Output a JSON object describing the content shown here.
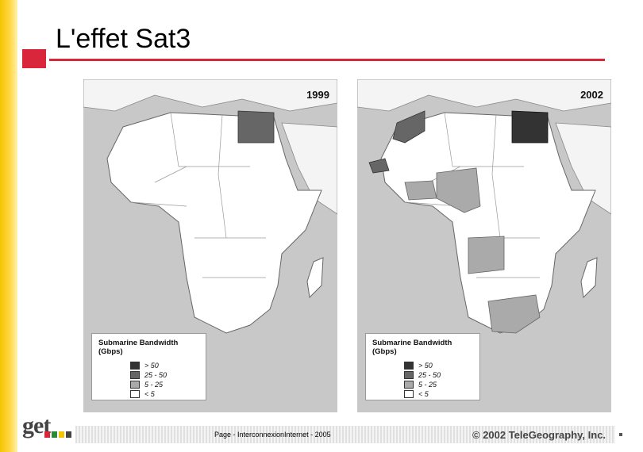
{
  "slide": {
    "title": "L'effet Sat3",
    "footer": "Page  - InterconnexionInternet  - 2005",
    "copyright": "© 2002 TeleGeography, Inc.",
    "logo_text": "get"
  },
  "maps": [
    {
      "year": "1999",
      "legend": {
        "title": "Submarine Bandwidth (Gbps)",
        "items": [
          {
            "label": "> 50",
            "color": "#333333"
          },
          {
            "label": "25 - 50",
            "color": "#666666"
          },
          {
            "label": "5 - 25",
            "color": "#aaaaaa"
          },
          {
            "label": "< 5",
            "color": "#ffffff"
          }
        ]
      },
      "shaded": [
        {
          "country": "Egypt",
          "class": "25 - 50"
        }
      ]
    },
    {
      "year": "2002",
      "legend": {
        "title": "Submarine Bandwidth (Gbps)",
        "items": [
          {
            "label": "> 50",
            "color": "#333333"
          },
          {
            "label": "25 - 50",
            "color": "#666666"
          },
          {
            "label": "5 - 25",
            "color": "#aaaaaa"
          },
          {
            "label": "< 5",
            "color": "#ffffff"
          }
        ]
      },
      "shaded": [
        {
          "country": "Egypt",
          "class": "> 50"
        },
        {
          "country": "Morocco",
          "class": "25 - 50"
        },
        {
          "country": "Senegal",
          "class": "25 - 50"
        },
        {
          "country": "Ivory Coast",
          "class": "5 - 25"
        },
        {
          "country": "Ghana",
          "class": "5 - 25"
        },
        {
          "country": "Nigeria",
          "class": "5 - 25"
        },
        {
          "country": "Cameroon",
          "class": "5 - 25"
        },
        {
          "country": "Gabon",
          "class": "5 - 25"
        },
        {
          "country": "Angola",
          "class": "5 - 25"
        },
        {
          "country": "South Africa",
          "class": "5 - 25"
        }
      ]
    }
  ]
}
